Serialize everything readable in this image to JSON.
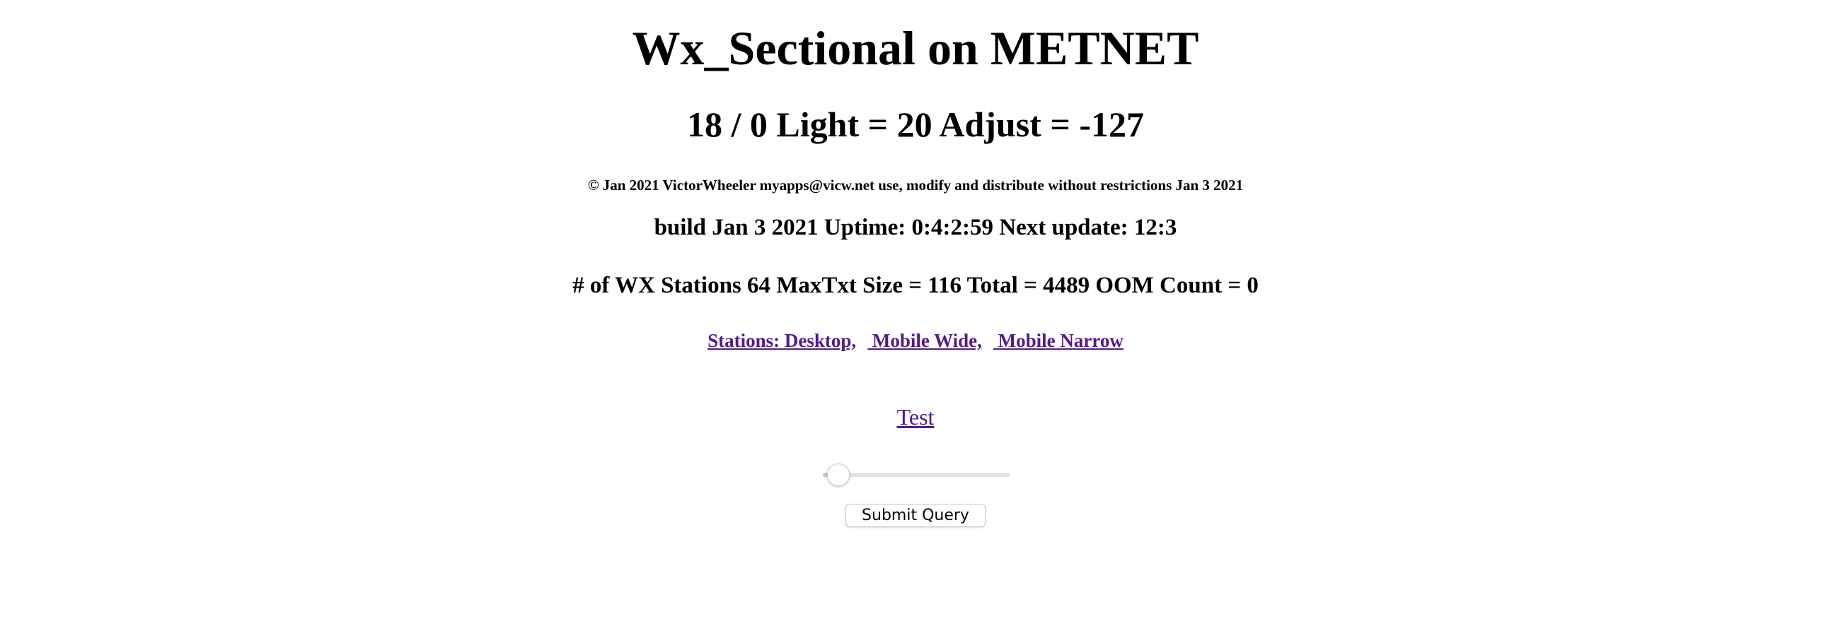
{
  "header": {
    "title": "Wx_Sectional on METNET",
    "status_line": "18 / 0 Light = 20 Adjust = -127",
    "copyright": "© Jan 2021 VictorWheeler myapps@vicw.net use, modify and distribute without restrictions Jan 3 2021",
    "build_line": "build Jan 3 2021 Uptime: 0:4:2:59 Next update: 12:3",
    "stations_line": "# of WX Stations 64 MaxTxt Size = 116 Total = 4489 OOM Count = 0"
  },
  "links": {
    "desktop": "Stations: Desktop,",
    "mobile_wide": " Mobile Wide,",
    "mobile_narrow": " Mobile Narrow",
    "test": "Test"
  },
  "form": {
    "slider_value": 0.08,
    "submit_label": "Submit Query"
  }
}
